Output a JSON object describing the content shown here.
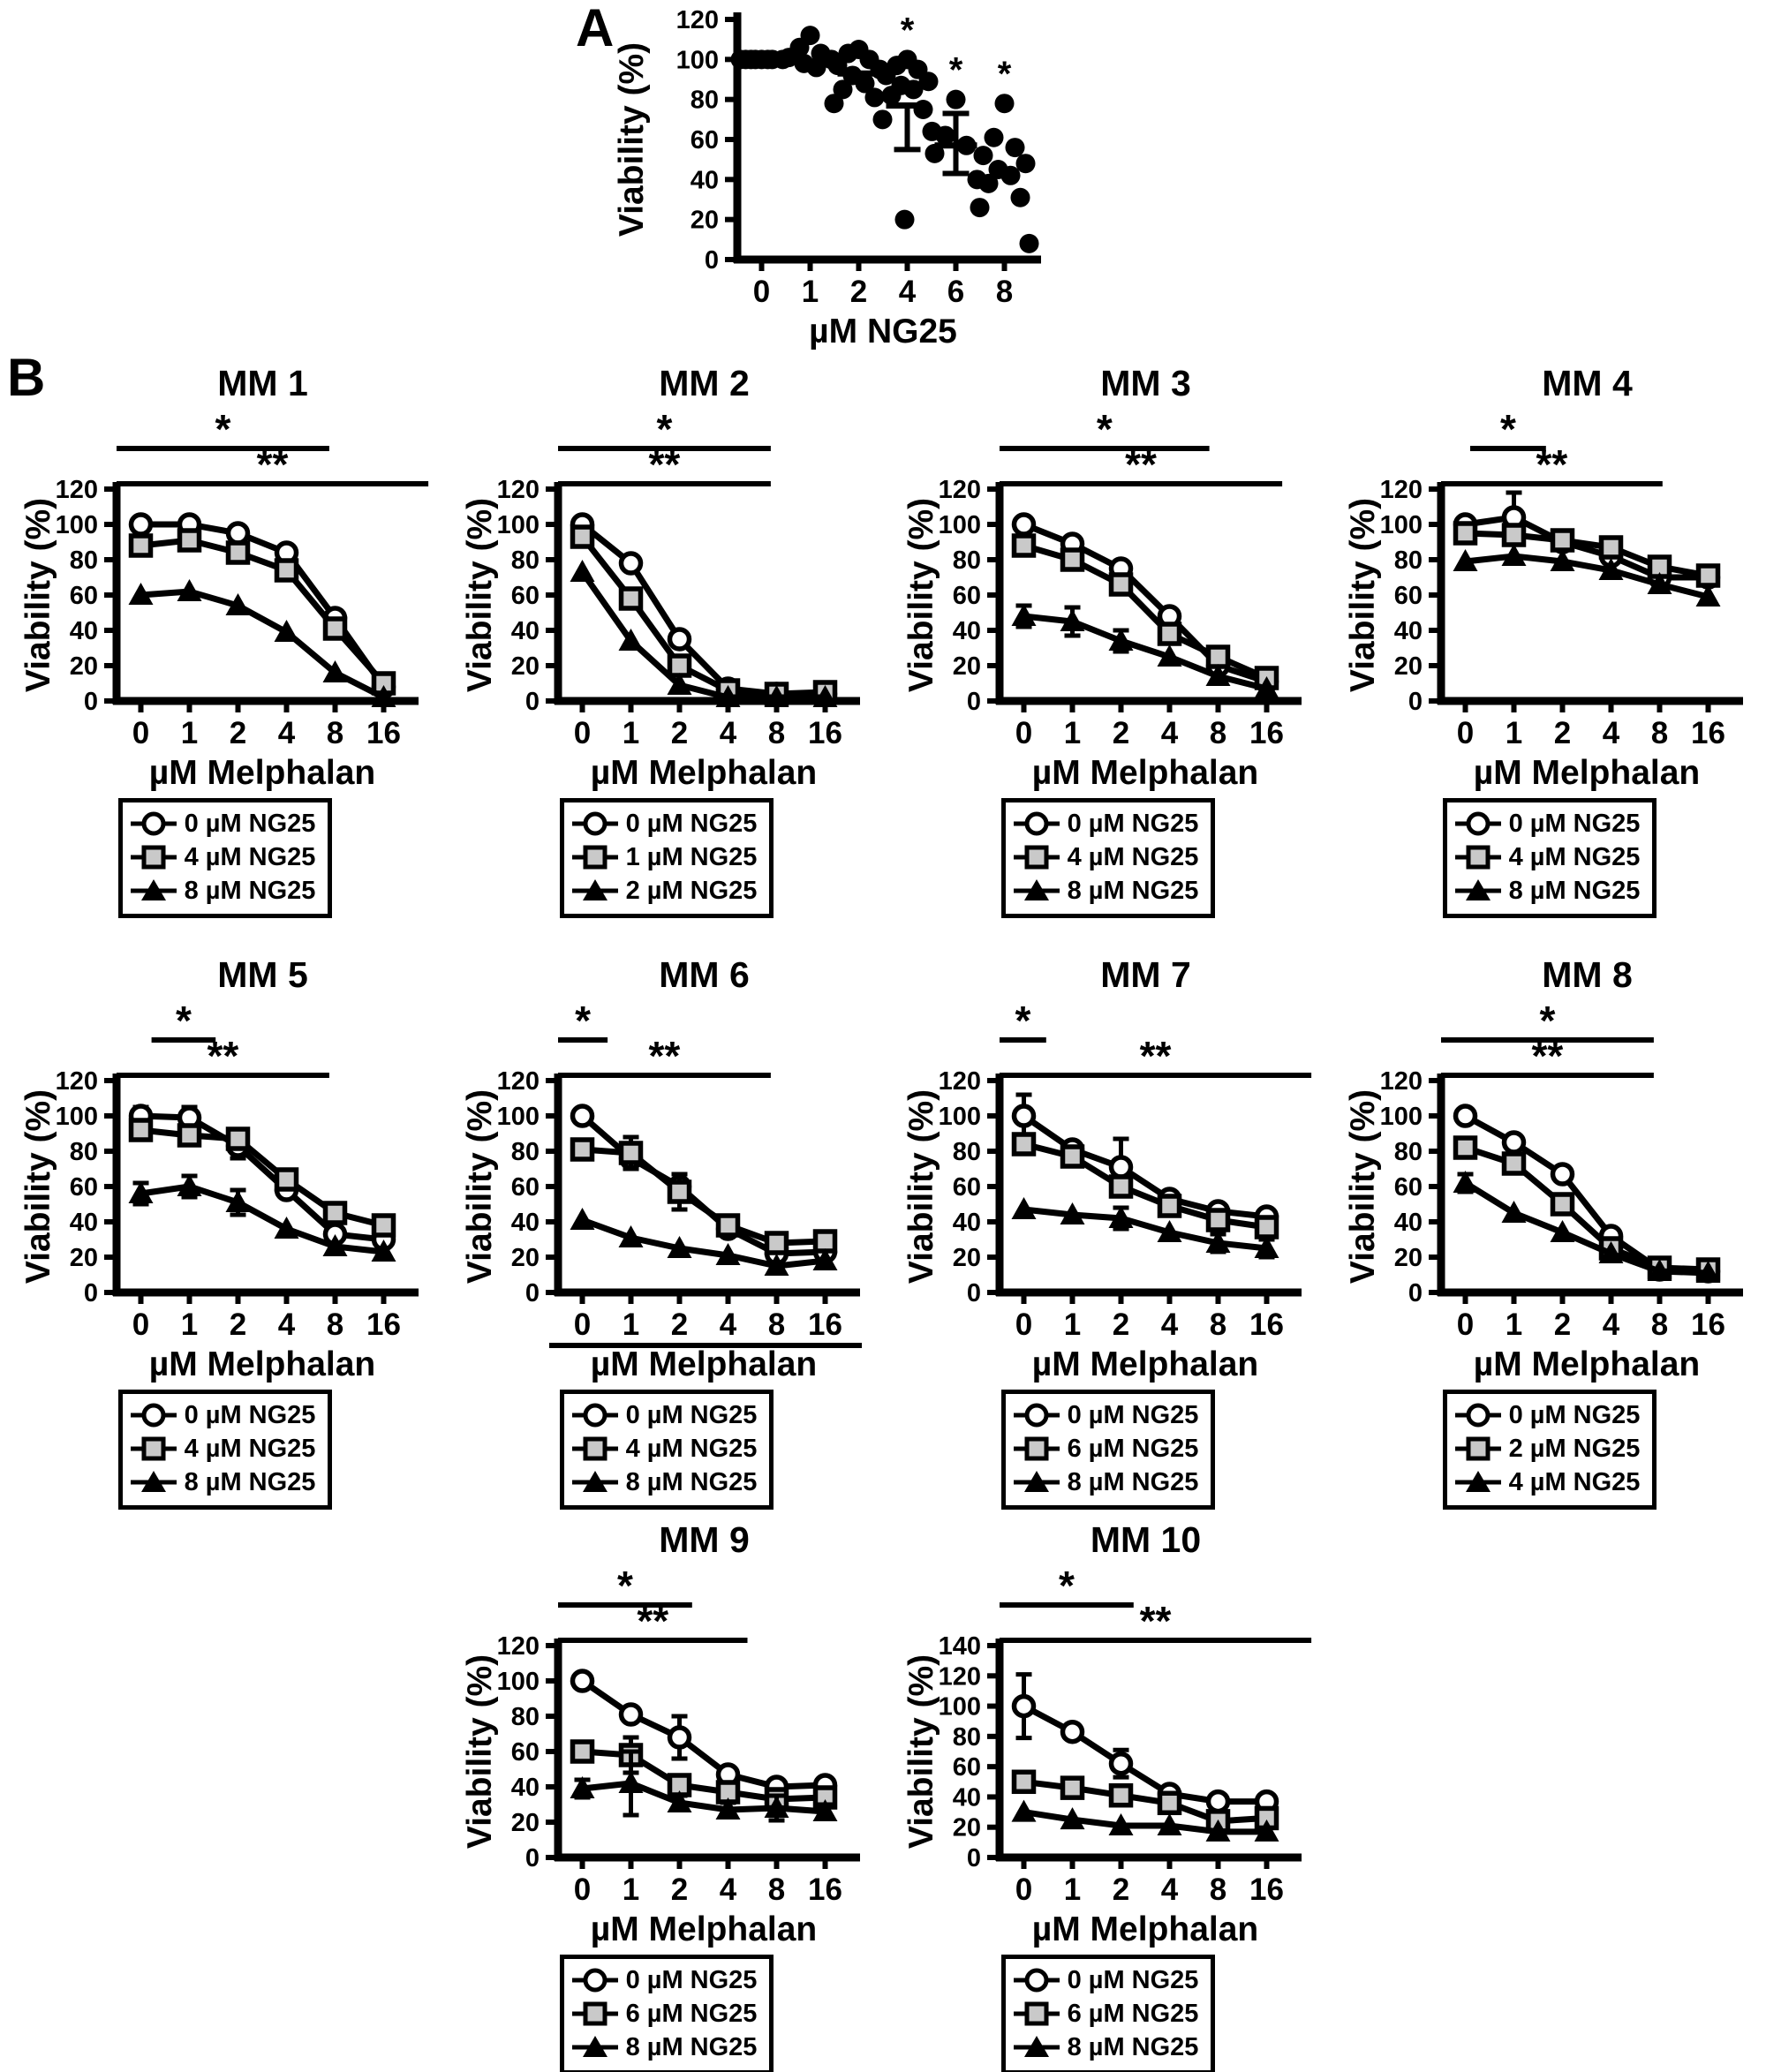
{
  "panel_a": {
    "label": "A"
  },
  "panel_b": {
    "label": "B"
  },
  "shared": {
    "xlabel_b": "µM Melphalan",
    "ylabel": "Viability (%)",
    "xlabel_a": "µM NG25"
  },
  "chart_data": [
    {
      "id": "panel-a",
      "type": "scatter",
      "title": "",
      "xlabel": "µM NG25",
      "ylabel": "Viability (%)",
      "ylim": [
        0,
        120
      ],
      "yticks": [
        0,
        20,
        40,
        60,
        80,
        100,
        120
      ],
      "categories": [
        "0",
        "1",
        "2",
        "4",
        "6",
        "8"
      ],
      "points": [
        [
          100,
          100,
          100,
          100,
          100,
          100,
          100,
          100
        ],
        [
          112,
          106,
          103,
          101,
          100,
          98,
          96
        ],
        [
          105,
          103,
          100,
          97,
          95,
          92,
          88,
          85,
          81,
          78
        ],
        [
          100,
          97,
          95,
          92,
          89,
          87,
          85,
          82,
          75,
          70,
          64,
          20
        ],
        [
          80,
          62,
          57,
          53,
          40
        ],
        [
          78,
          61,
          56,
          52,
          48,
          45,
          42,
          38,
          31,
          26,
          8
        ]
      ],
      "means": [
        null,
        null,
        93,
        77,
        57,
        null
      ],
      "whisker_lo": [
        null,
        null,
        null,
        55,
        43,
        null
      ],
      "whisker_hi": [
        null,
        null,
        null,
        null,
        73,
        null
      ],
      "stars": [
        false,
        false,
        false,
        true,
        true,
        true
      ]
    },
    {
      "id": "mm1",
      "type": "line",
      "title": "MM 1",
      "xlabel": "µM Melphalan",
      "ylabel": "Viability (%)",
      "ylim": [
        0,
        120
      ],
      "yticks": [
        0,
        20,
        40,
        60,
        80,
        100,
        120
      ],
      "categories": [
        "0",
        "1",
        "2",
        "4",
        "8",
        "16"
      ],
      "series": [
        {
          "name": "0 µM NG25",
          "marker": "circle",
          "values": [
            100,
            100,
            95,
            84,
            47,
            8
          ],
          "errors": [
            0,
            0,
            0,
            0,
            0,
            0
          ]
        },
        {
          "name": "4 µM NG25",
          "marker": "square",
          "values": [
            88,
            91,
            84,
            74,
            41,
            10
          ],
          "errors": [
            0,
            0,
            0,
            0,
            0,
            0
          ]
        },
        {
          "name": "8 µM NG25",
          "marker": "triangle",
          "values": [
            60,
            62,
            54,
            39,
            16,
            2
          ],
          "errors": [
            0,
            0,
            0,
            0,
            0,
            0
          ]
        }
      ],
      "significance": [
        {
          "label": "*",
          "x1f": 0.0,
          "x2f": 0.73,
          "row": 0
        },
        {
          "label": "**",
          "x1f": 0.0,
          "x2f": 1.07,
          "row": 1
        }
      ]
    },
    {
      "id": "mm2",
      "type": "line",
      "title": "MM 2",
      "xlabel": "µM Melphalan",
      "ylabel": "Viability (%)",
      "ylim": [
        0,
        120
      ],
      "yticks": [
        0,
        20,
        40,
        60,
        80,
        100,
        120
      ],
      "categories": [
        "0",
        "1",
        "2",
        "4",
        "8",
        "16"
      ],
      "series": [
        {
          "name": "0 µM NG25",
          "marker": "circle",
          "values": [
            100,
            78,
            35,
            7,
            4,
            4
          ],
          "errors": [
            0,
            0,
            0,
            0,
            0,
            0
          ]
        },
        {
          "name": "1 µM NG25",
          "marker": "square",
          "values": [
            93,
            58,
            20,
            6,
            4,
            5
          ],
          "errors": [
            0,
            0,
            0,
            0,
            0,
            0
          ]
        },
        {
          "name": "2 µM NG25",
          "marker": "triangle",
          "values": [
            73,
            34,
            9,
            2,
            2,
            2
          ],
          "errors": [
            0,
            0,
            0,
            0,
            0,
            0
          ]
        }
      ],
      "significance": [
        {
          "label": "*",
          "x1f": 0.0,
          "x2f": 0.73,
          "row": 0
        },
        {
          "label": "**",
          "x1f": 0.0,
          "x2f": 0.73,
          "row": 1
        }
      ]
    },
    {
      "id": "mm3",
      "type": "line",
      "title": "MM 3",
      "xlabel": "µM Melphalan",
      "ylabel": "Viability (%)",
      "ylim": [
        0,
        120
      ],
      "yticks": [
        0,
        20,
        40,
        60,
        80,
        100,
        120
      ],
      "categories": [
        "0",
        "1",
        "2",
        "4",
        "8",
        "16"
      ],
      "series": [
        {
          "name": "0 µM NG25",
          "marker": "circle",
          "values": [
            100,
            89,
            75,
            48,
            20,
            11
          ],
          "errors": [
            0,
            0,
            0,
            0,
            0,
            0
          ]
        },
        {
          "name": "4 µM NG25",
          "marker": "square",
          "values": [
            88,
            80,
            66,
            38,
            25,
            13
          ],
          "errors": [
            0,
            0,
            0,
            0,
            0,
            0
          ]
        },
        {
          "name": "8 µM NG25",
          "marker": "triangle",
          "values": [
            48,
            45,
            34,
            25,
            14,
            7
          ],
          "errors": [
            6,
            8,
            6,
            0,
            0,
            0
          ]
        }
      ],
      "significance": [
        {
          "label": "*",
          "x1f": 0.0,
          "x2f": 0.72,
          "row": 0
        },
        {
          "label": "**",
          "x1f": 0.0,
          "x2f": 0.97,
          "row": 1
        }
      ]
    },
    {
      "id": "mm4",
      "type": "line",
      "title": "MM 4",
      "xlabel": "µM Melphalan",
      "ylabel": "Viability (%)",
      "ylim": [
        0,
        120
      ],
      "yticks": [
        0,
        20,
        40,
        60,
        80,
        100,
        120
      ],
      "categories": [
        "0",
        "1",
        "2",
        "4",
        "8",
        "16"
      ],
      "series": [
        {
          "name": "0 µM NG25",
          "marker": "circle",
          "values": [
            100,
            104,
            90,
            82,
            70,
            70
          ],
          "errors": [
            0,
            14,
            0,
            0,
            0,
            0
          ]
        },
        {
          "name": "4 µM NG25",
          "marker": "square",
          "values": [
            95,
            94,
            91,
            87,
            76,
            71
          ],
          "errors": [
            0,
            0,
            0,
            0,
            0,
            0
          ]
        },
        {
          "name": "8 µM NG25",
          "marker": "triangle",
          "values": [
            79,
            82,
            79,
            74,
            66,
            59
          ],
          "errors": [
            0,
            0,
            0,
            0,
            0,
            0
          ]
        }
      ],
      "significance": [
        {
          "label": "*",
          "x1f": 0.1,
          "x2f": 0.36,
          "row": 0
        },
        {
          "label": "**",
          "x1f": 0.0,
          "x2f": 0.76,
          "row": 1
        }
      ]
    },
    {
      "id": "mm5",
      "type": "line",
      "title": "MM 5",
      "xlabel": "µM Melphalan",
      "ylabel": "Viability (%)",
      "ylim": [
        0,
        120
      ],
      "yticks": [
        0,
        20,
        40,
        60,
        80,
        100,
        120
      ],
      "categories": [
        "0",
        "1",
        "2",
        "4",
        "8",
        "16"
      ],
      "series": [
        {
          "name": "0 µM NG25",
          "marker": "circle",
          "values": [
            100,
            99,
            83,
            58,
            33,
            30
          ],
          "errors": [
            5,
            6,
            7,
            0,
            0,
            0
          ]
        },
        {
          "name": "4 µM NG25",
          "marker": "square",
          "values": [
            92,
            89,
            87,
            64,
            45,
            38
          ],
          "errors": [
            5,
            0,
            0,
            0,
            0,
            0
          ]
        },
        {
          "name": "8 µM NG25",
          "marker": "triangle",
          "values": [
            56,
            60,
            51,
            36,
            26,
            23
          ],
          "errors": [
            6,
            6,
            7,
            0,
            0,
            0
          ]
        }
      ],
      "significance": [
        {
          "label": "*",
          "x1f": 0.12,
          "x2f": 0.34,
          "row": 0
        },
        {
          "label": "**",
          "x1f": 0.0,
          "x2f": 0.73,
          "row": 1
        }
      ]
    },
    {
      "id": "mm6",
      "type": "line",
      "title": "MM 6",
      "xlabel": "µM Melphalan",
      "ylabel": "Viability (%)",
      "xlabel_underline": true,
      "ylim": [
        0,
        120
      ],
      "yticks": [
        0,
        20,
        40,
        60,
        80,
        100,
        120
      ],
      "categories": [
        "0",
        "1",
        "2",
        "4",
        "8",
        "16"
      ],
      "series": [
        {
          "name": "0 µM NG25",
          "marker": "circle",
          "values": [
            100,
            76,
            60,
            36,
            22,
            23
          ],
          "errors": [
            0,
            0,
            0,
            0,
            0,
            0
          ]
        },
        {
          "name": "4 µM NG25",
          "marker": "square",
          "values": [
            81,
            79,
            57,
            38,
            28,
            29
          ],
          "errors": [
            0,
            9,
            10,
            4,
            0,
            0
          ]
        },
        {
          "name": "8 µM NG25",
          "marker": "triangle",
          "values": [
            41,
            31,
            25,
            21,
            15,
            18
          ],
          "errors": [
            0,
            0,
            0,
            0,
            0,
            0
          ]
        }
      ],
      "significance": [
        {
          "label": "*",
          "x1f": 0.0,
          "x2f": 0.17,
          "row": 0
        },
        {
          "label": "**",
          "x1f": 0.0,
          "x2f": 0.73,
          "row": 1
        }
      ]
    },
    {
      "id": "mm7",
      "type": "line",
      "title": "MM 7",
      "xlabel": "µM Melphalan",
      "ylabel": "Viability (%)",
      "ylim": [
        0,
        120
      ],
      "yticks": [
        0,
        20,
        40,
        60,
        80,
        100,
        120
      ],
      "categories": [
        "0",
        "1",
        "2",
        "4",
        "8",
        "16"
      ],
      "series": [
        {
          "name": "0 µM NG25",
          "marker": "circle",
          "values": [
            100,
            81,
            71,
            53,
            46,
            43
          ],
          "errors": [
            12,
            0,
            16,
            0,
            0,
            0
          ]
        },
        {
          "name": "6 µM NG25",
          "marker": "square",
          "values": [
            84,
            77,
            60,
            49,
            41,
            37
          ],
          "errors": [
            0,
            0,
            0,
            0,
            0,
            0
          ]
        },
        {
          "name": "8 µM NG25",
          "marker": "triangle",
          "values": [
            47,
            44,
            42,
            34,
            28,
            25
          ],
          "errors": [
            0,
            0,
            6,
            0,
            5,
            5
          ]
        }
      ],
      "significance": [
        {
          "label": "*",
          "x1f": 0.0,
          "x2f": 0.16,
          "row": 0
        },
        {
          "label": "**",
          "x1f": 0.0,
          "x2f": 1.07,
          "row": 1
        }
      ]
    },
    {
      "id": "mm8",
      "type": "line",
      "title": "MM 8",
      "xlabel": "µM Melphalan",
      "ylabel": "Viability (%)",
      "ylim": [
        0,
        120
      ],
      "yticks": [
        0,
        20,
        40,
        60,
        80,
        100,
        120
      ],
      "categories": [
        "0",
        "1",
        "2",
        "4",
        "8",
        "16"
      ],
      "series": [
        {
          "name": "0 µM NG25",
          "marker": "circle",
          "values": [
            100,
            85,
            67,
            32,
            13,
            12
          ],
          "errors": [
            0,
            0,
            0,
            0,
            0,
            0
          ]
        },
        {
          "name": "2 µM NG25",
          "marker": "square",
          "values": [
            82,
            73,
            50,
            25,
            14,
            13
          ],
          "errors": [
            0,
            0,
            0,
            0,
            0,
            0
          ]
        },
        {
          "name": "4 µM NG25",
          "marker": "triangle",
          "values": [
            62,
            45,
            34,
            22,
            12,
            11
          ],
          "errors": [
            5,
            0,
            0,
            0,
            0,
            0
          ]
        }
      ],
      "significance": [
        {
          "label": "*",
          "x1f": 0.0,
          "x2f": 0.73,
          "row": 0
        },
        {
          "label": "**",
          "x1f": 0.0,
          "x2f": 0.73,
          "row": 1
        }
      ]
    },
    {
      "id": "mm9",
      "type": "line",
      "title": "MM 9",
      "xlabel": "µM Melphalan",
      "ylabel": "Viability (%)",
      "ylim": [
        0,
        120
      ],
      "yticks": [
        0,
        20,
        40,
        60,
        80,
        100,
        120
      ],
      "categories": [
        "0",
        "1",
        "2",
        "4",
        "8",
        "16"
      ],
      "series": [
        {
          "name": "0 µM NG25",
          "marker": "circle",
          "values": [
            100,
            81,
            68,
            47,
            40,
            41
          ],
          "errors": [
            0,
            0,
            12,
            0,
            4,
            4
          ]
        },
        {
          "name": "6 µM NG25",
          "marker": "square",
          "values": [
            60,
            58,
            41,
            37,
            33,
            34
          ],
          "errors": [
            0,
            10,
            4,
            5,
            4,
            0
          ]
        },
        {
          "name": "8 µM NG25",
          "marker": "triangle",
          "values": [
            39,
            42,
            31,
            27,
            28,
            26
          ],
          "errors": [
            5,
            18,
            4,
            4,
            7,
            4
          ]
        }
      ],
      "significance": [
        {
          "label": "*",
          "x1f": 0.0,
          "x2f": 0.46,
          "row": 0
        },
        {
          "label": "**",
          "x1f": 0.0,
          "x2f": 0.65,
          "row": 1
        }
      ]
    },
    {
      "id": "mm10",
      "type": "line",
      "title": "MM 10",
      "xlabel": "µM Melphalan",
      "ylabel": "Viability (%)",
      "ylim": [
        0,
        140
      ],
      "yticks": [
        0,
        20,
        40,
        60,
        80,
        100,
        120,
        140
      ],
      "categories": [
        "0",
        "1",
        "2",
        "4",
        "8",
        "16"
      ],
      "series": [
        {
          "name": "0 µM NG25",
          "marker": "circle",
          "values": [
            100,
            83,
            62,
            42,
            37,
            37
          ],
          "errors": [
            21,
            0,
            9,
            0,
            0,
            0
          ]
        },
        {
          "name": "6 µM NG25",
          "marker": "square",
          "values": [
            50,
            46,
            41,
            36,
            24,
            26
          ],
          "errors": [
            6,
            0,
            0,
            0,
            0,
            0
          ]
        },
        {
          "name": "8 µM NG25",
          "marker": "triangle",
          "values": [
            30,
            25,
            21,
            21,
            17,
            17
          ],
          "errors": [
            0,
            0,
            0,
            0,
            0,
            0
          ]
        }
      ],
      "significance": [
        {
          "label": "*",
          "x1f": 0.0,
          "x2f": 0.46,
          "row": 0
        },
        {
          "label": "**",
          "x1f": 0.0,
          "x2f": 1.07,
          "row": 1
        }
      ]
    }
  ]
}
